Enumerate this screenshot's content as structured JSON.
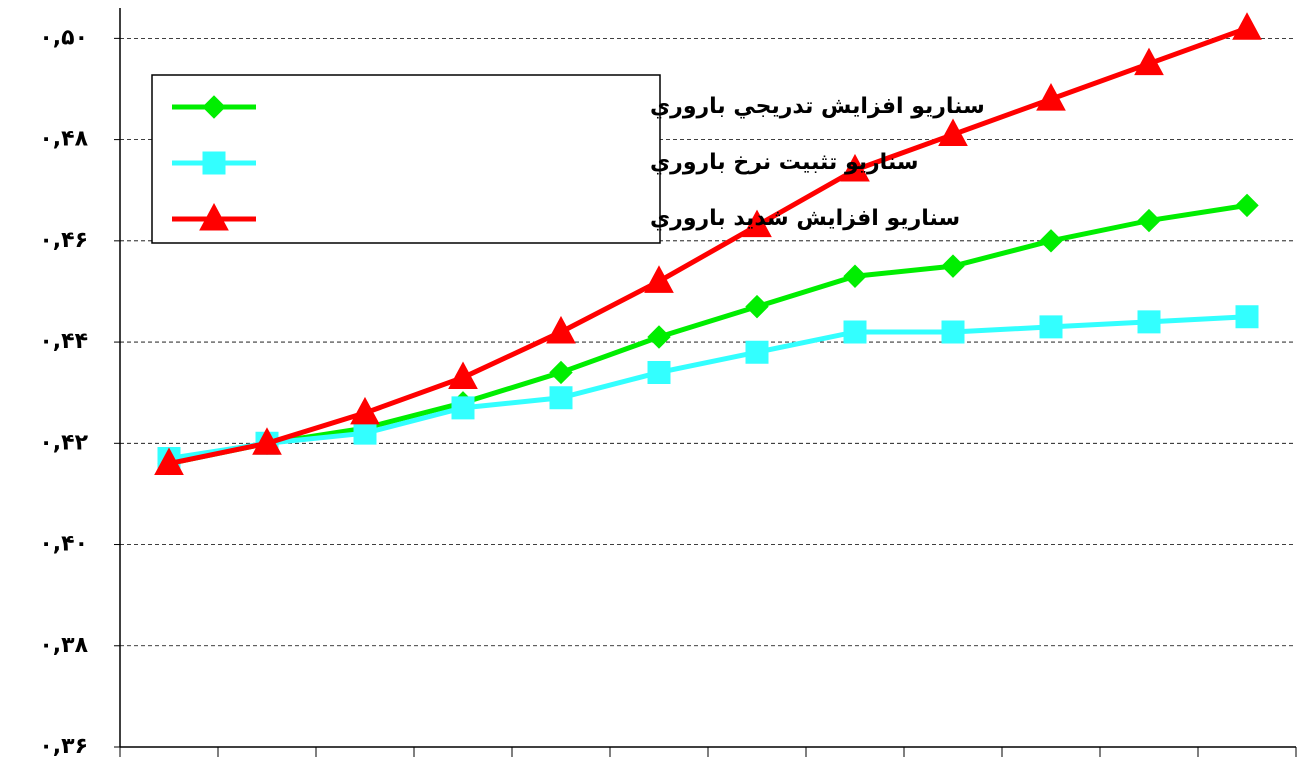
{
  "chart_data": {
    "type": "line",
    "categories": [
      null,
      null,
      null,
      null,
      null,
      null,
      null,
      null,
      null,
      null,
      null,
      null
    ],
    "series": [
      {
        "name": "سناريو افزايش تدريجي باروري",
        "color": "#00ee00",
        "marker": "diamond",
        "values": [
          0.416,
          0.42,
          0.423,
          0.428,
          0.434,
          0.441,
          0.447,
          0.453,
          0.455,
          0.46,
          0.464,
          0.467
        ]
      },
      {
        "name": "سناريو تثبيت نرخ باروري",
        "color": "#33ffff",
        "marker": "square",
        "values": [
          0.417,
          0.42,
          0.422,
          0.427,
          0.429,
          0.434,
          0.438,
          0.442,
          0.442,
          0.443,
          0.444,
          0.445
        ]
      },
      {
        "name": "سناريو افزايش شديد باروري",
        "color": "#ff0000",
        "marker": "triangle",
        "values": [
          0.416,
          0.42,
          0.426,
          0.433,
          0.442,
          0.452,
          0.463,
          0.474,
          0.481,
          0.488,
          0.495,
          0.502
        ]
      }
    ],
    "ylim": [
      0.36,
      0.506
    ],
    "yticks": [
      {
        "value": 0.36,
        "label": "۰,۳۶"
      },
      {
        "value": 0.38,
        "label": "۰,۳۸"
      },
      {
        "value": 0.4,
        "label": "۰,۴۰"
      },
      {
        "value": 0.42,
        "label": "۰,۴۲"
      },
      {
        "value": 0.44,
        "label": "۰,۴۴"
      },
      {
        "value": 0.46,
        "label": "۰,۴۶"
      },
      {
        "value": 0.48,
        "label": "۰,۴۸"
      },
      {
        "value": 0.5,
        "label": "۰,۵۰"
      }
    ],
    "grid": true,
    "legend": "upper left"
  }
}
